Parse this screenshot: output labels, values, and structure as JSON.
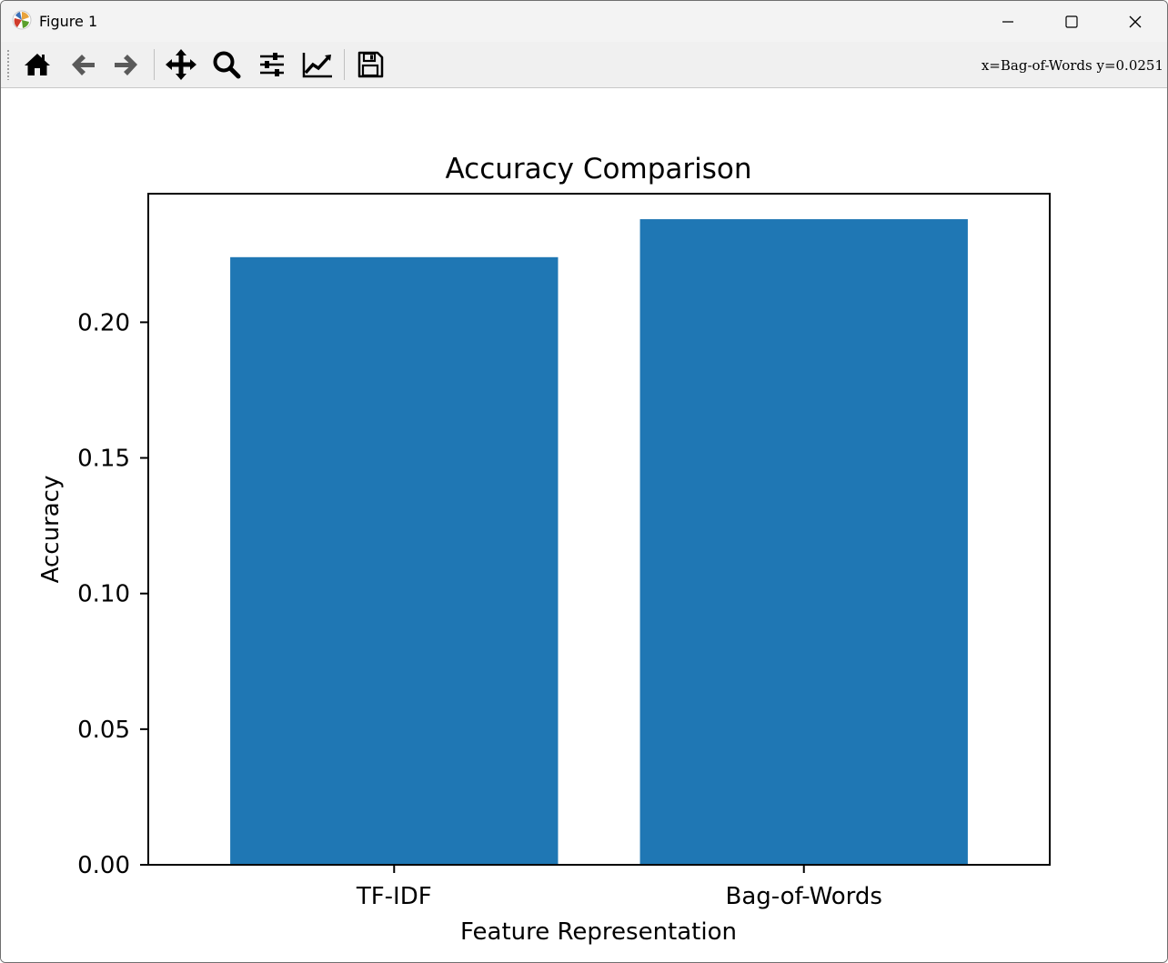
{
  "window": {
    "title": "Figure 1",
    "app_icon": "matplotlib-icon"
  },
  "window_controls": {
    "minimize": "minimize-icon",
    "maximize": "maximize-icon",
    "close": "close-icon"
  },
  "toolbar": {
    "buttons": [
      {
        "name": "home-button",
        "icon": "home-icon"
      },
      {
        "name": "back-button",
        "icon": "arrow-left-icon"
      },
      {
        "name": "forward-button",
        "icon": "arrow-right-icon"
      },
      {
        "name": "pan-button",
        "icon": "move-icon"
      },
      {
        "name": "zoom-button",
        "icon": "magnifier-icon"
      },
      {
        "name": "subplots-button",
        "icon": "sliders-icon"
      },
      {
        "name": "axes-button",
        "icon": "trend-line-icon"
      },
      {
        "name": "save-button",
        "icon": "floppy-disk-icon"
      }
    ],
    "coordinates": "x=Bag-of-Words y=0.0251"
  },
  "chart_data": {
    "type": "bar",
    "title": "Accuracy Comparison",
    "xlabel": "Feature Representation",
    "ylabel": "Accuracy",
    "categories": [
      "TF-IDF",
      "Bag-of-Words"
    ],
    "values": [
      0.224,
      0.238
    ],
    "ylim": [
      0,
      0.2474
    ],
    "yticks": [
      0.0,
      0.05,
      0.1,
      0.15,
      0.2
    ],
    "ytick_labels": [
      "0.00",
      "0.05",
      "0.10",
      "0.15",
      "0.20"
    ],
    "grid": false,
    "bar_color": "#1f77b4"
  }
}
